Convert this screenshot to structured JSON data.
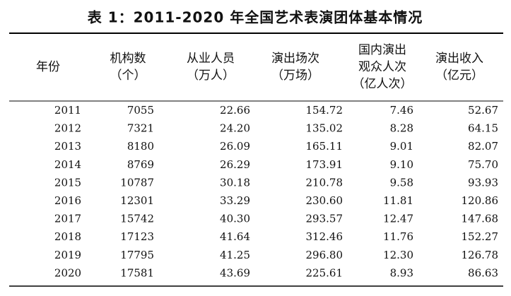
{
  "title": "表 1：2011-2020 年全国艺术表演团体基本情况",
  "table": {
    "header": [
      [
        "年份"
      ],
      [
        "机构数",
        "（个）"
      ],
      [
        "从业人员",
        "（万人）"
      ],
      [
        "演出场次",
        "（万场）"
      ],
      [
        "国内演出",
        "观众人次",
        "（亿人次）"
      ],
      [
        "演出收入",
        "（亿元）"
      ]
    ],
    "rows": [
      [
        "2011",
        "7055",
        "22.66",
        "154.72",
        "7.46",
        "52.67"
      ],
      [
        "2012",
        "7321",
        "24.20",
        "135.02",
        "8.28",
        "64.15"
      ],
      [
        "2013",
        "8180",
        "26.09",
        "165.11",
        "9.01",
        "82.07"
      ],
      [
        "2014",
        "8769",
        "26.29",
        "173.91",
        "9.10",
        "75.70"
      ],
      [
        "2015",
        "10787",
        "30.18",
        "210.78",
        "9.58",
        "93.93"
      ],
      [
        "2016",
        "12301",
        "33.29",
        "230.60",
        "11.81",
        "120.86"
      ],
      [
        "2017",
        "15742",
        "40.30",
        "293.57",
        "12.47",
        "147.68"
      ],
      [
        "2018",
        "17123",
        "41.64",
        "312.46",
        "11.76",
        "152.27"
      ],
      [
        "2019",
        "17795",
        "41.25",
        "296.80",
        "12.30",
        "126.78"
      ],
      [
        "2020",
        "17581",
        "43.69",
        "225.61",
        "8.93",
        "86.63"
      ]
    ]
  }
}
